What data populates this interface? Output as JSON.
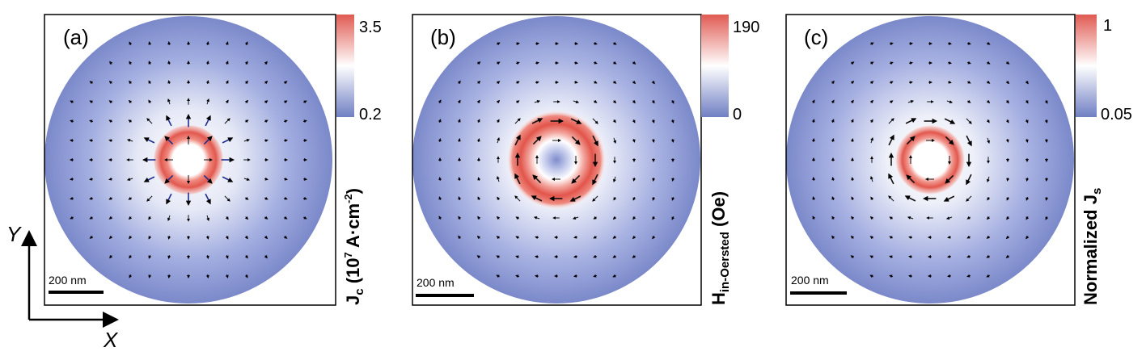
{
  "panels": [
    {
      "label": "(a)",
      "scale_bar": "200 nm",
      "colorbar": {
        "max": "3.5",
        "min": "0.2"
      },
      "colorbar_title": {
        "main": "J",
        "sub": "c",
        "rest": " (10",
        "sup": "7",
        "rest2": " A·cm",
        "sup2": "-2",
        "close": ")"
      },
      "field": "radial",
      "ring_radius_frac": 0.25,
      "center_dip": false
    },
    {
      "label": "(b)",
      "scale_bar": "200 nm",
      "colorbar": {
        "max": "190",
        "min": "0"
      },
      "colorbar_title": {
        "main": "H",
        "sub": "in-Oersted",
        "rest": " (Oe)"
      },
      "field": "circular",
      "ring_radius_frac": 0.38,
      "center_dip": true
    },
    {
      "label": "(c)",
      "scale_bar": "200 nm",
      "colorbar": {
        "max": "1",
        "min": "0.05"
      },
      "colorbar_title": {
        "pre": "Normalized ",
        "main": "J",
        "sub": "s"
      },
      "field": "circular",
      "ring_radius_frac": 0.28,
      "center_dip": false
    }
  ],
  "axes": {
    "y": "Y",
    "x": "X"
  },
  "colors": {
    "low": "#6f7fc3",
    "mid": "#ffffff",
    "high": "#e05a52"
  }
}
